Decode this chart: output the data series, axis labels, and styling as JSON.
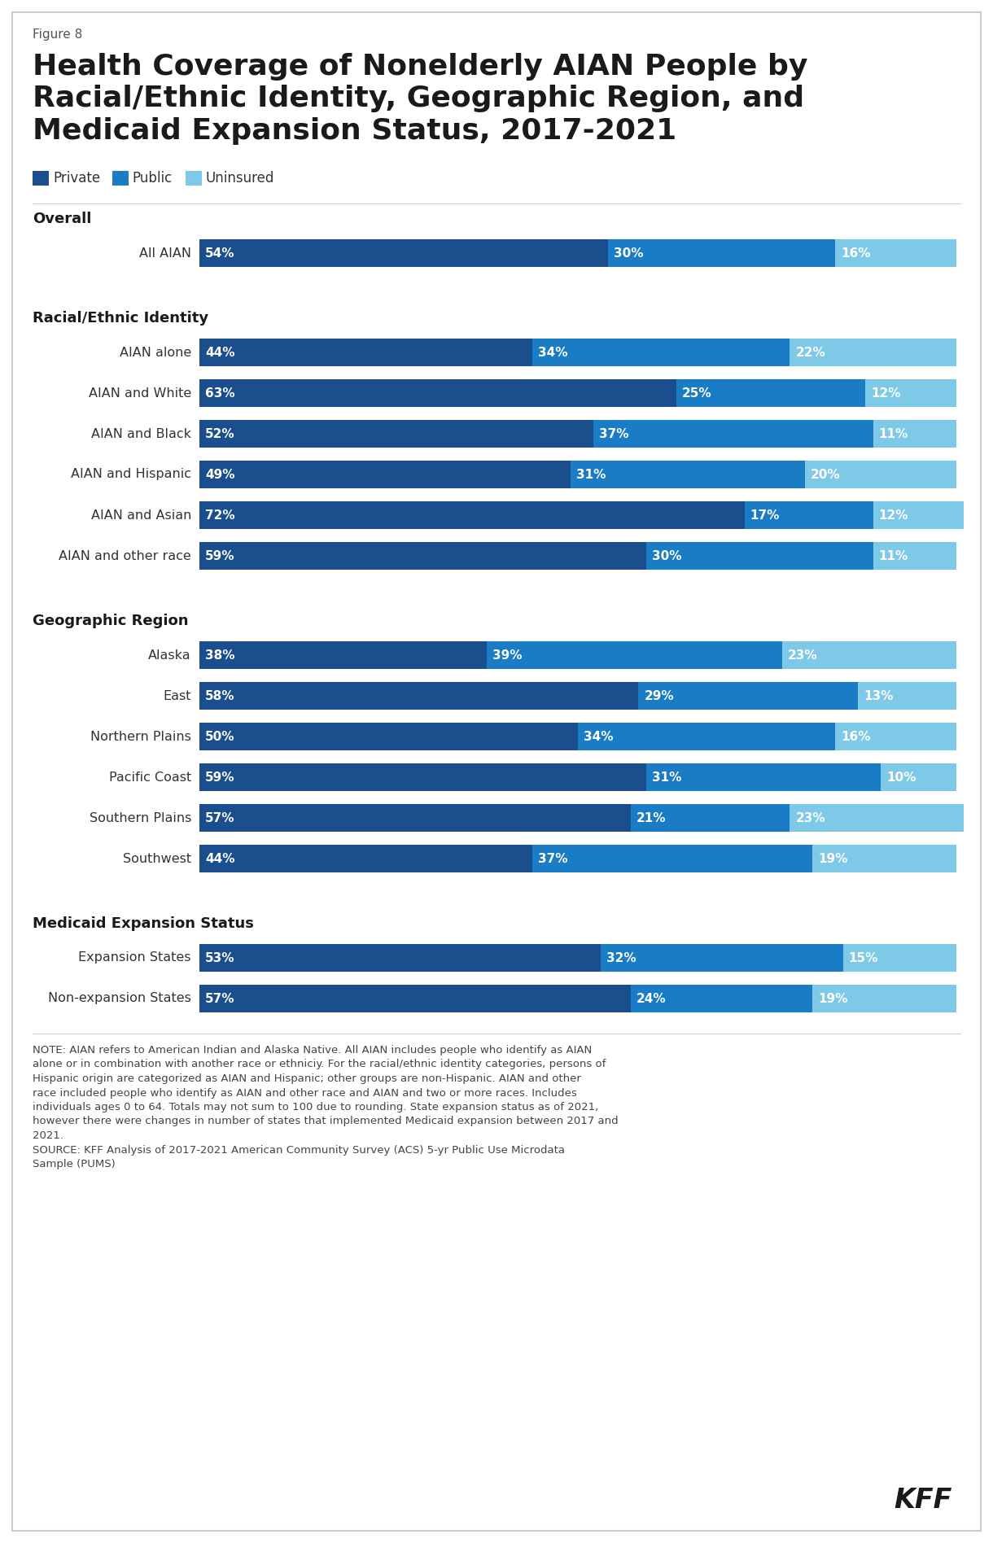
{
  "figure_label": "Figure 8",
  "title": "Health Coverage of Nonelderly AIAN People by\nRacial/Ethnic Identity, Geographic Region, and\nMedicaid Expansion Status, 2017-2021",
  "colors": {
    "private": "#1a4e8c",
    "public": "#1a7cc4",
    "uninsured": "#7ec8e8"
  },
  "legend": [
    "Private",
    "Public",
    "Uninsured"
  ],
  "sections": [
    {
      "header": "Overall",
      "rows": [
        {
          "label": "All AIAN",
          "values": [
            54,
            30,
            16
          ]
        }
      ]
    },
    {
      "header": "Racial/Ethnic Identity",
      "rows": [
        {
          "label": "AIAN alone",
          "values": [
            44,
            34,
            22
          ]
        },
        {
          "label": "AIAN and White",
          "values": [
            63,
            25,
            12
          ]
        },
        {
          "label": "AIAN and Black",
          "values": [
            52,
            37,
            11
          ]
        },
        {
          "label": "AIAN and Hispanic",
          "values": [
            49,
            31,
            20
          ]
        },
        {
          "label": "AIAN and Asian",
          "values": [
            72,
            17,
            12
          ]
        },
        {
          "label": "AIAN and other race",
          "values": [
            59,
            30,
            11
          ]
        }
      ]
    },
    {
      "header": "Geographic Region",
      "rows": [
        {
          "label": "Alaska",
          "values": [
            38,
            39,
            23
          ]
        },
        {
          "label": "East",
          "values": [
            58,
            29,
            13
          ]
        },
        {
          "label": "Northern Plains",
          "values": [
            50,
            34,
            16
          ]
        },
        {
          "label": "Pacific Coast",
          "values": [
            59,
            31,
            10
          ]
        },
        {
          "label": "Southern Plains",
          "values": [
            57,
            21,
            23
          ]
        },
        {
          "label": "Southwest",
          "values": [
            44,
            37,
            19
          ]
        }
      ]
    },
    {
      "header": "Medicaid Expansion Status",
      "rows": [
        {
          "label": "Expansion States",
          "values": [
            53,
            32,
            15
          ]
        },
        {
          "label": "Non-expansion States",
          "values": [
            57,
            24,
            19
          ]
        }
      ]
    }
  ],
  "footnote": "NOTE: AIAN refers to American Indian and Alaska Native. All AIAN includes people who identify as AIAN\nalone or in combination with another race or ethniciy. For the racial/ethnic identity categories, persons of\nHispanic origin are categorized as AIAN and Hispanic; other groups are non-Hispanic. AIAN and other\nrace included people who identify as AIAN and other race and AIAN and two or more races. Includes\nindividuals ages 0 to 64. Totals may not sum to 100 due to rounding. State expansion status as of 2021,\nhowever there were changes in number of states that implemented Medicaid expansion between 2017 and\n2021.\nSOURCE: KFF Analysis of 2017-2021 American Community Survey (ACS) 5-yr Public Use Microdata\nSample (PUMS)",
  "background_color": "#ffffff"
}
